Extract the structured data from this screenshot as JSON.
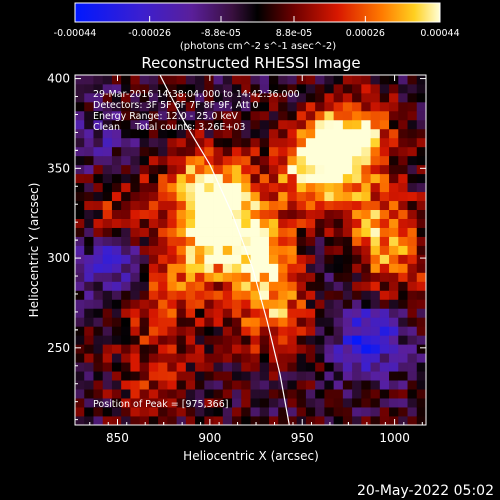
{
  "chart_data": {
    "type": "heatmap",
    "title": "Reconstructed RHESSI Image",
    "xlabel": "Heliocentric X (arcsec)",
    "ylabel": "Heliocentric Y (arcsec)",
    "xlim": [
      827,
      1017
    ],
    "ylim": [
      207,
      402
    ],
    "xticks": [
      "850",
      "900",
      "950",
      "1000"
    ],
    "xtick_values": [
      850,
      900,
      950,
      1000
    ],
    "yticks": [
      "250",
      "300",
      "350",
      "400"
    ],
    "ytick_values": [
      250,
      300,
      350,
      400
    ],
    "colorbar": {
      "range": [
        -0.00044,
        0.00044
      ],
      "tick_labels": [
        "-0.00044",
        "-0.00026",
        "-8.8e-05",
        "8.8e-05",
        "0.00026",
        "0.00044"
      ],
      "tick_values": [
        -0.00044,
        -0.00026,
        -8.8e-05,
        8.8e-05,
        0.00026,
        0.00044
      ],
      "units_label": "(photons cm^-2 s^-1 asec^-2)"
    },
    "info_lines": [
      "29-Mar-2016 14:38:04.000 to 14:42:36.000",
      "Detectors: 3F 5F 6F 7F 8F 9F, Att 0",
      "Energy Range: 12.0 - 25.0 keV",
      "Clean     Total counts: 3.26E+03"
    ],
    "peak_label": "Position of Peak = [975,366]",
    "peak": {
      "x": 975,
      "y": 366
    },
    "bright_sources": [
      {
        "x": 975,
        "y": 366,
        "intensity": 1.0
      },
      {
        "x": 957,
        "y": 350,
        "intensity": 0.85
      },
      {
        "x": 899,
        "y": 338,
        "intensity": 0.9
      },
      {
        "x": 910,
        "y": 318,
        "intensity": 0.65
      },
      {
        "x": 930,
        "y": 300,
        "intensity": 0.8
      },
      {
        "x": 935,
        "y": 268,
        "intensity": 0.6
      },
      {
        "x": 885,
        "y": 300,
        "intensity": 0.5
      },
      {
        "x": 990,
        "y": 320,
        "intensity": 0.55
      },
      {
        "x": 1000,
        "y": 295,
        "intensity": 0.45
      },
      {
        "x": 850,
        "y": 330,
        "intensity": 0.35
      },
      {
        "x": 870,
        "y": 275,
        "intensity": 0.4
      },
      {
        "x": 870,
        "y": 235,
        "intensity": 0.35
      }
    ],
    "dark_sources": [
      {
        "x": 850,
        "y": 295,
        "intensity": 0.6
      },
      {
        "x": 985,
        "y": 255,
        "intensity": 0.7
      },
      {
        "x": 960,
        "y": 295,
        "intensity": 0.3
      },
      {
        "x": 840,
        "y": 365,
        "intensity": 0.3
      }
    ],
    "limb_curve": [
      [
        873,
        402
      ],
      [
        885,
        378
      ],
      [
        900,
        352
      ],
      [
        912,
        325
      ],
      [
        923,
        295
      ],
      [
        931,
        265
      ],
      [
        938,
        235
      ],
      [
        943,
        207
      ]
    ],
    "colors": {
      "background": "#000000",
      "limb": "#ffffff",
      "text": "#ffffff"
    }
  },
  "footer": {
    "date": "20-May-2022 05:02"
  }
}
